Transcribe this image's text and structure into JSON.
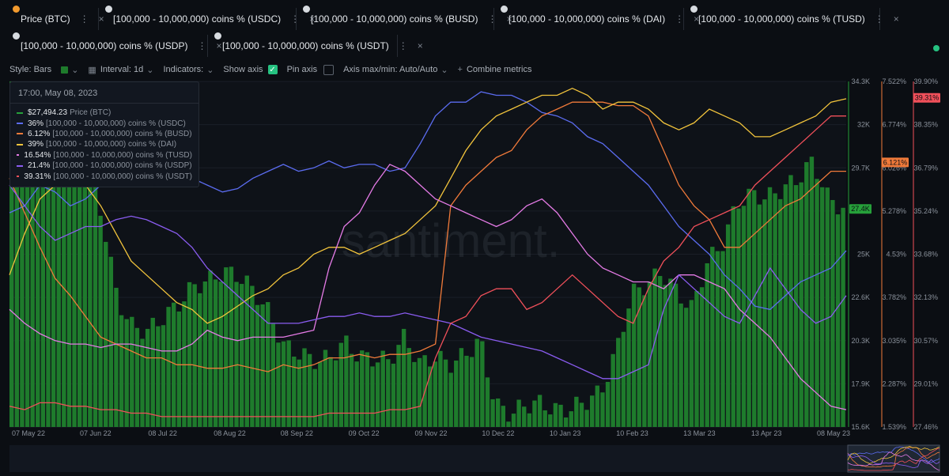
{
  "tabs": [
    {
      "label": "Price (BTC)",
      "color": "#26a03a",
      "badge": "btc"
    },
    {
      "label": "[100,000 - 10,000,000) coins % (USDC)",
      "color": "#5b6cf0",
      "badge": "eth"
    },
    {
      "label": "[100,000 - 10,000,000) coins % (BUSD)",
      "color": "#f07a3a",
      "badge": "eth"
    },
    {
      "label": "[100,000 - 10,000,000) coins % (DAI)",
      "color": "#f2c43c",
      "badge": "eth"
    },
    {
      "label": "[100,000 - 10,000,000) coins % (TUSD)",
      "color": "#e57be6",
      "badge": "eth"
    },
    {
      "label": "[100,000 - 10,000,000) coins % (USDP)",
      "color": "#8a5cf0",
      "badge": "eth"
    },
    {
      "label": "[100,000 - 10,000,000) coins % (USDT)",
      "color": "#f0505a",
      "badge": "eth"
    }
  ],
  "toolbar": {
    "style": "Style: Bars",
    "interval": "Interval: 1d",
    "indicators": "Indicators:",
    "show_axis": "Show axis",
    "pin_axis": "Pin axis",
    "axis_maxmin": "Axis max/min: Auto/Auto",
    "combine": "Combine metrics"
  },
  "watermark": "santiment.",
  "tooltip": {
    "datetime": "17:00, May 08, 2023",
    "rows": [
      {
        "value": "$27,494.23",
        "name": "Price (BTC)",
        "color": "#26a03a"
      },
      {
        "value": "36%",
        "name": "[100,000  - 10,000,000) coins % (USDC)",
        "color": "#5b6cf0"
      },
      {
        "value": "6.12%",
        "name": "[100,000  - 10,000,000) coins % (BUSD)",
        "color": "#f07a3a"
      },
      {
        "value": "39%",
        "name": "[100,000  - 10,000,000) coins % (DAI)",
        "color": "#f2c43c"
      },
      {
        "value": "16.54%",
        "name": "[100,000  - 10,000,000) coins % (TUSD)",
        "color": "#e57be6"
      },
      {
        "value": "21.4%",
        "name": "[100,000  - 10,000,000) coins % (USDP)",
        "color": "#8a5cf0"
      },
      {
        "value": "39.31%",
        "name": "[100,000  - 10,000,000) coins % (USDT)",
        "color": "#f0505a"
      }
    ]
  },
  "chart_data": {
    "type": "bar",
    "x_tick_labels": [
      "07 May 22",
      "07 Jun 22",
      "08 Jul 22",
      "08 Aug 22",
      "08 Sep 22",
      "09 Oct 22",
      "09 Nov 22",
      "10 Dec 22",
      "10 Jan 23",
      "10 Feb 23",
      "13 Mar 23",
      "13 Apr 23",
      "08 May 23"
    ],
    "price_axis": {
      "ticks": [
        "34.3K",
        "32K",
        "29.7K",
        "27.4K",
        "25K",
        "22.6K",
        "20.3K",
        "17.9K",
        "15.6K"
      ],
      "min": 15600,
      "max": 34300,
      "current": "27.4K",
      "color": "#26a03a"
    },
    "busd_axis": {
      "ticks": [
        "7.522%",
        "6.774%",
        "6.026%",
        "5.278%",
        "4.53%",
        "3.782%",
        "3.035%",
        "2.287%",
        "1.539%"
      ],
      "min": 1.539,
      "max": 7.522,
      "current": "6.121%",
      "color": "#f07a3a"
    },
    "usdt_axis": {
      "ticks": [
        "39.90%",
        "38.35%",
        "36.79%",
        "35.24%",
        "33.68%",
        "32.13%",
        "30.57%",
        "29.01%",
        "27.46%"
      ],
      "min": 27.46,
      "max": 39.9,
      "current": "39.31%",
      "color": "#f0505a"
    },
    "price_btc": [
      37500,
      34000,
      31000,
      29800,
      30500,
      29700,
      27000,
      22500,
      21000,
      20800,
      21500,
      22200,
      23200,
      23500,
      24000,
      23800,
      23000,
      21800,
      20000,
      19600,
      19200,
      19300,
      20200,
      19400,
      19300,
      19200,
      20500,
      19000,
      19400,
      19000,
      19500,
      20300,
      16800,
      16300,
      16800,
      16900,
      16500,
      16600,
      17000,
      17500,
      19700,
      22800,
      23300,
      24000,
      22900,
      22000,
      24500,
      25500,
      27700,
      28200,
      28000,
      28500,
      29000,
      30000,
      28000,
      27400
    ],
    "series": [
      {
        "name": "[100,000 - 10,000,000) coins % (USDC)",
        "color": "#5b6cf0",
        "values": [
          62,
          64,
          70,
          68,
          64,
          66,
          70,
          72,
          71,
          70,
          70,
          73,
          72,
          70,
          68,
          69,
          72,
          74,
          76,
          74,
          75,
          77,
          75,
          76,
          76,
          74,
          75,
          82,
          90,
          94,
          94,
          97,
          96,
          96,
          94,
          91,
          90,
          88,
          84,
          82,
          78,
          74,
          70,
          64,
          58,
          54,
          50,
          44,
          40,
          35,
          34,
          38,
          42,
          44,
          46,
          51
        ]
      },
      {
        "name": "[100,000 - 10,000,000) coins % (BUSD)",
        "color": "#f07a3a",
        "values": [
          72,
          62,
          52,
          43,
          38,
          32,
          26,
          24,
          22,
          20,
          20,
          18,
          18,
          17,
          17,
          18,
          17,
          16,
          18,
          17,
          18,
          20,
          20,
          21,
          20,
          21,
          21,
          22,
          24,
          64,
          70,
          74,
          78,
          80,
          86,
          90,
          92,
          94,
          94,
          94,
          93,
          93,
          90,
          80,
          70,
          64,
          60,
          52,
          52,
          56,
          60,
          64,
          66,
          70,
          74,
          74
        ]
      },
      {
        "name": "[100,000 - 10,000,000) coins % (DAI)",
        "color": "#f2c43c",
        "values": [
          44,
          56,
          66,
          70,
          72,
          70,
          64,
          56,
          48,
          44,
          40,
          36,
          34,
          30,
          32,
          35,
          38,
          40,
          44,
          46,
          50,
          52,
          52,
          50,
          52,
          54,
          56,
          60,
          64,
          72,
          80,
          86,
          90,
          92,
          94,
          96,
          96,
          98,
          96,
          92,
          94,
          94,
          92,
          88,
          86,
          88,
          92,
          90,
          88,
          84,
          84,
          86,
          88,
          90,
          94,
          95
        ]
      },
      {
        "name": "[100,000 - 10,000,000) coins % (TUSD)",
        "color": "#e57be6",
        "values": [
          34,
          30,
          27,
          25,
          24,
          24,
          23,
          24,
          24,
          23,
          22,
          22,
          24,
          28,
          26,
          25,
          26,
          26,
          26,
          27,
          28,
          46,
          58,
          62,
          70,
          76,
          74,
          70,
          66,
          64,
          62,
          60,
          58,
          60,
          64,
          66,
          62,
          56,
          50,
          46,
          44,
          42,
          42,
          40,
          44,
          44,
          42,
          40,
          34,
          30,
          26,
          20,
          14,
          10,
          6,
          5
        ]
      },
      {
        "name": "[100,000 - 10,000,000) coins % (USDP)",
        "color": "#8a5cf0",
        "values": [
          70,
          64,
          58,
          54,
          56,
          58,
          58,
          60,
          61,
          60,
          58,
          56,
          52,
          46,
          42,
          38,
          34,
          30,
          30,
          30,
          31,
          32,
          32,
          33,
          32,
          32,
          33,
          32,
          31,
          30,
          28,
          26,
          25,
          24,
          23,
          22,
          20,
          18,
          16,
          14,
          14,
          16,
          18,
          34,
          44,
          40,
          36,
          32,
          30,
          38,
          46,
          40,
          34,
          30,
          32,
          38
        ]
      },
      {
        "name": "[100,000 - 10,000,000) coins % (USDT)",
        "color": "#f0505a",
        "values": [
          6,
          5,
          7,
          7,
          6,
          6,
          5,
          5,
          4,
          4,
          3,
          3,
          3,
          3,
          3,
          3,
          3,
          3,
          3,
          3,
          3,
          4,
          4,
          4,
          4,
          5,
          5,
          6,
          20,
          30,
          32,
          38,
          40,
          40,
          34,
          36,
          40,
          44,
          40,
          36,
          32,
          30,
          40,
          48,
          52,
          58,
          60,
          62,
          64,
          70,
          74,
          78,
          82,
          86,
          90,
          90
        ]
      }
    ],
    "ylim_norm": [
      0,
      100
    ]
  }
}
